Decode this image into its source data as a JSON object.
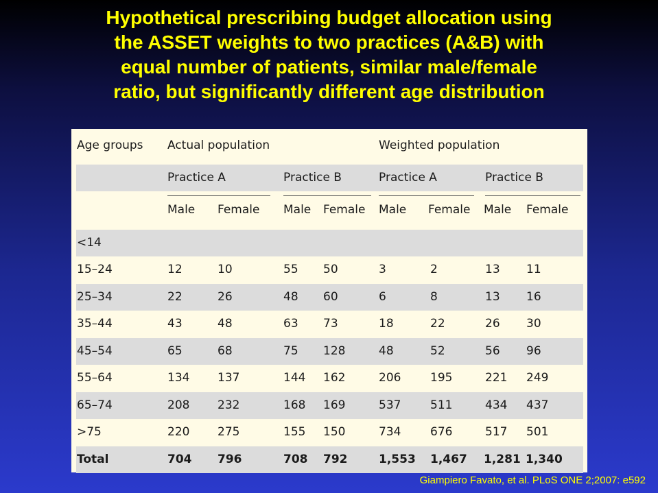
{
  "title_lines": [
    "Hypothetical prescribing budget allocation using",
    "the ASSET weights to two practices (A&B) with",
    "equal number of patients, similar male/female",
    "ratio, but significantly different age distribution"
  ],
  "table": {
    "header1": {
      "age_groups": "Age groups",
      "actual": "Actual population",
      "weighted": "Weighted population"
    },
    "header2": {
      "practice_a": "Practice A",
      "practice_b": "Practice B",
      "practice_a_w": "Practice A",
      "practice_b_w": "Practice B"
    },
    "header3": [
      "Male",
      "Female",
      "Male",
      "Female",
      "Male",
      "Female",
      "Male",
      "Female"
    ],
    "rows": [
      [
        "<14",
        "",
        "",
        "",
        "",
        "",
        "",
        "",
        ""
      ],
      [
        "15–24",
        "12",
        "10",
        "55",
        "50",
        "3",
        "2",
        "13",
        "11"
      ],
      [
        "25–34",
        "22",
        "26",
        "48",
        "60",
        "6",
        "8",
        "13",
        "16"
      ],
      [
        "35–44",
        "43",
        "48",
        "63",
        "73",
        "18",
        "22",
        "26",
        "30"
      ],
      [
        "45–54",
        "65",
        "68",
        "75",
        "128",
        "48",
        "52",
        "56",
        "96"
      ],
      [
        "55–64",
        "134",
        "137",
        "144",
        "162",
        "206",
        "195",
        "221",
        "249"
      ],
      [
        "65–74",
        "208",
        "232",
        "168",
        "169",
        "537",
        "511",
        "434",
        "437"
      ],
      [
        ">75",
        "220",
        "275",
        "155",
        "150",
        "734",
        "676",
        "517",
        "501"
      ],
      [
        "Total",
        "704",
        "796",
        "708",
        "792",
        "1,553",
        "1,467",
        "1,281",
        "1,340"
      ]
    ]
  },
  "source": "Giampiero Favato, et al. PLoS ONE 2;2007: e592",
  "colors": {
    "title": "#ffff00",
    "panel": "#fffbe6",
    "shade": "#dcdcdc",
    "text": "#1a1a1a"
  }
}
